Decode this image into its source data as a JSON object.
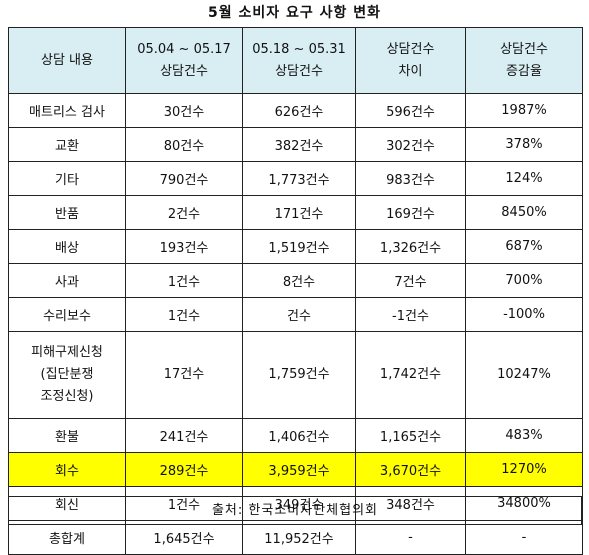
{
  "title": "5월 소비자 요구 사항 변화",
  "headers": [
    [
      "상담 내용"
    ],
    [
      "05.04 ~ 05.17",
      "상담건수"
    ],
    [
      "05.18 ~ 05.31",
      "상담건수"
    ],
    [
      "상담건수",
      "차이"
    ],
    [
      "상담건수",
      "증감율"
    ]
  ],
  "rows": [
    {
      "item": [
        "매트리스 검사"
      ],
      "c1": "30건수",
      "c2": "626건수",
      "diff": "596건수",
      "rate": "1987%"
    },
    {
      "item": [
        "교환"
      ],
      "c1": "80건수",
      "c2": "382건수",
      "diff": "302건수",
      "rate": "378%"
    },
    {
      "item": [
        "기타"
      ],
      "c1": "790건수",
      "c2": "1,773건수",
      "diff": "983건수",
      "rate": "124%"
    },
    {
      "item": [
        "반품"
      ],
      "c1": "2건수",
      "c2": "171건수",
      "diff": "169건수",
      "rate": "8450%"
    },
    {
      "item": [
        "배상"
      ],
      "c1": "193건수",
      "c2": "1,519건수",
      "diff": "1,326건수",
      "rate": "687%"
    },
    {
      "item": [
        "사과"
      ],
      "c1": "1건수",
      "c2": "8건수",
      "diff": "7건수",
      "rate": "700%"
    },
    {
      "item": [
        "수리보수"
      ],
      "c1": "1건수",
      "c2": "건수",
      "diff": "-1건수",
      "rate": "-100%"
    },
    {
      "item": [
        "피해구제신청",
        "(집단분쟁",
        "조정신청)"
      ],
      "c1": "17건수",
      "c2": "1,759건수",
      "diff": "1,742건수",
      "rate": "10247%"
    },
    {
      "item": [
        "환불"
      ],
      "c1": "241건수",
      "c2": "1,406건수",
      "diff": "1,165건수",
      "rate": "483%"
    },
    {
      "item": [
        "회수"
      ],
      "c1": "289건수",
      "c2": "3,959건수",
      "diff": "3,670건수",
      "rate": "1270%",
      "highlight": true
    },
    {
      "item": [
        "회신"
      ],
      "c1": "1건수",
      "c2": "349건수",
      "diff": "348건수",
      "rate": "34800%"
    },
    {
      "item": [
        "총합계"
      ],
      "c1": "1,645건수",
      "c2": "11,952건수",
      "diff": "-",
      "rate": "-"
    }
  ],
  "source": "출처: 한국소비자단체협의회",
  "colors": {
    "header_bg": "#d8eef3",
    "highlight": "#ffff00",
    "border": "#222222"
  }
}
